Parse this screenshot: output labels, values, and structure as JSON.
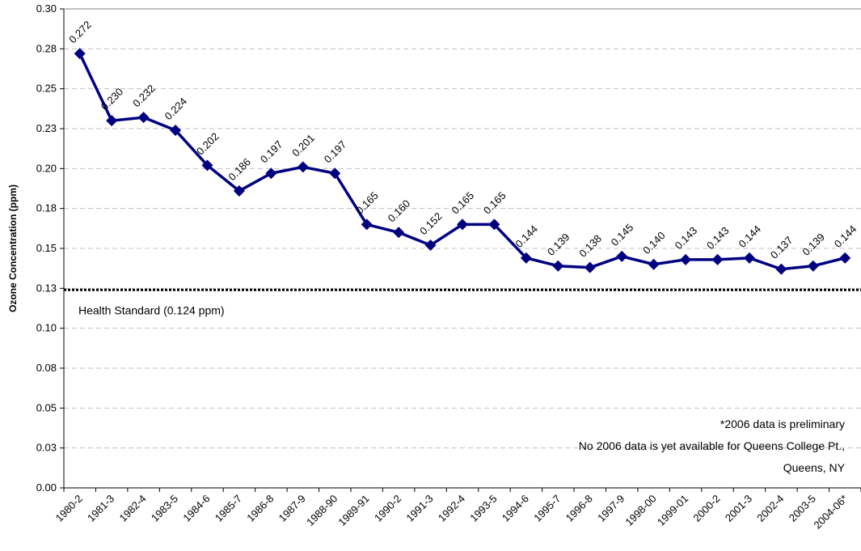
{
  "chart_data": {
    "type": "line",
    "y_label": "Ozone Concentration (ppm)",
    "categories": [
      "1980-2",
      "1981-3",
      "1982-4",
      "1983-5",
      "1984-6",
      "1985-7",
      "1986-8",
      "1987-9",
      "1988-90",
      "1989-91",
      "1990-2",
      "1991-3",
      "1992-4",
      "1993-5",
      "1994-6",
      "1995-7",
      "1996-8",
      "1997-9",
      "1998-00",
      "1999-01",
      "2000-2",
      "2001-3",
      "2002-4",
      "2003-5",
      "2004-06*"
    ],
    "series": [
      {
        "name": "Ozone",
        "color": "#000080",
        "values": [
          0.272,
          0.23,
          0.232,
          0.224,
          0.202,
          0.186,
          0.197,
          0.201,
          0.197,
          0.165,
          0.16,
          0.152,
          0.165,
          0.165,
          0.144,
          0.139,
          0.138,
          0.145,
          0.14,
          0.143,
          0.143,
          0.144,
          0.137,
          0.139,
          0.144
        ],
        "value_labels": [
          "0.272",
          "0.230",
          "0.232",
          "0.224",
          "0.202",
          "0.186",
          "0.197",
          "0.201",
          "0.197",
          "0.165",
          "0.160",
          "0.152",
          "0.165",
          "0.165",
          "0.144",
          "0.139",
          "0.138",
          "0.145",
          "0.140",
          "0.143",
          "0.143",
          "0.144",
          "0.137",
          "0.139",
          "0.144"
        ]
      }
    ],
    "ylim": [
      0,
      0.3
    ],
    "yticks": [
      {
        "value": 0,
        "label": "0.00"
      },
      {
        "value": 0.025,
        "label": "0.03"
      },
      {
        "value": 0.05,
        "label": "0.05"
      },
      {
        "value": 0.075,
        "label": "0.08"
      },
      {
        "value": 0.1,
        "label": "0.10"
      },
      {
        "value": 0.125,
        "label": "0.13"
      },
      {
        "value": 0.15,
        "label": "0.15"
      },
      {
        "value": 0.175,
        "label": "0.18"
      },
      {
        "value": 0.2,
        "label": "0.20"
      },
      {
        "value": 0.225,
        "label": "0.23"
      },
      {
        "value": 0.25,
        "label": "0.25"
      },
      {
        "value": 0.275,
        "label": "0.28"
      },
      {
        "value": 0.3,
        "label": "0.30"
      }
    ],
    "grid": true,
    "health_standard": {
      "value": 0.124,
      "label": "Health Standard (0.124 ppm)"
    },
    "notes": [
      "*2006 data is preliminary",
      "No 2006 data is yet available for Queens College Pt.,",
      "Queens, NY"
    ]
  }
}
